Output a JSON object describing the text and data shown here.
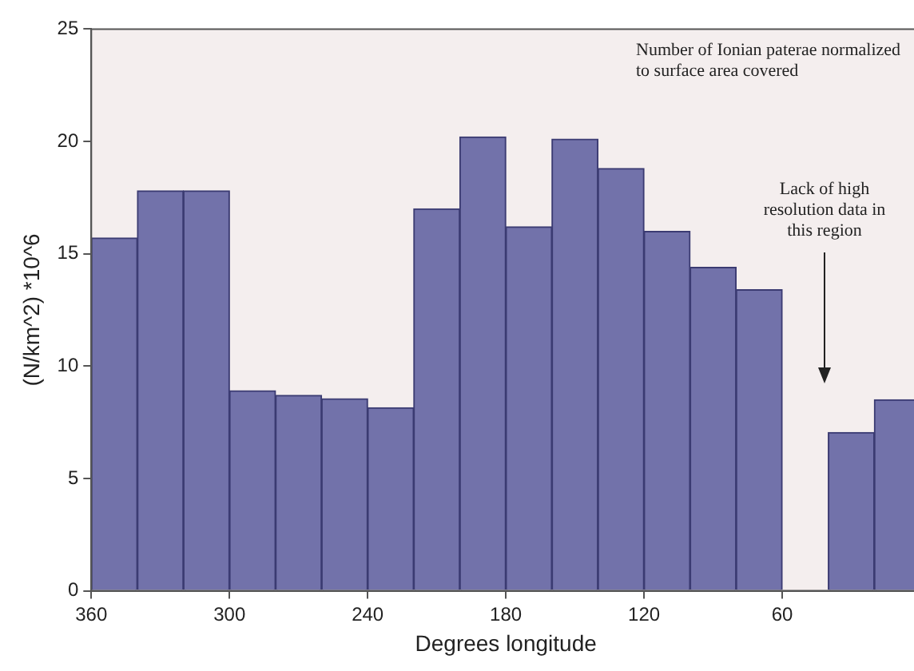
{
  "chart_data": {
    "type": "histogram",
    "xlabel": "Degrees longitude",
    "ylabel": "(N/km^2) *10^6",
    "bins": [
      360,
      340,
      320,
      300,
      280,
      260,
      240,
      220,
      200,
      180,
      160,
      140,
      120,
      100,
      80,
      60,
      40,
      20,
      0
    ],
    "values": [
      15.7,
      17.8,
      17.8,
      8.9,
      8.7,
      8.55,
      8.15,
      17.0,
      20.2,
      16.2,
      20.1,
      18.8,
      16.0,
      14.4,
      13.4,
      null,
      7.05,
      8.5
    ],
    "color": "#7272aa",
    "xlim": [
      360,
      0
    ],
    "xticks": [
      360,
      300,
      240,
      180,
      120,
      60
    ],
    "ylim": [
      0,
      25
    ],
    "yticks": [
      0,
      5,
      10,
      15,
      20,
      25
    ],
    "grid": false,
    "legend": false,
    "annotations": [
      "Number of Ionian paterae normalized to surface area covered",
      "Lack of high resolution data in this region"
    ]
  }
}
